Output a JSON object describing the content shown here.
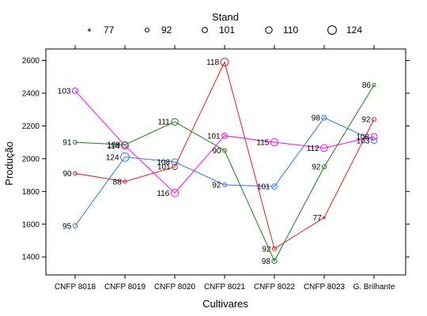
{
  "chart_data": {
    "type": "line",
    "title": "",
    "xlabel": "Cultivares",
    "ylabel": "Produção",
    "categories": [
      "CNFP 8018",
      "CNFP 8019",
      "CNFP 8020",
      "CNFP 8021",
      "CNFP 8022",
      "CNFP 8023",
      "G. Brilhante"
    ],
    "y_ticks": [
      1400,
      1600,
      1800,
      2000,
      2200,
      2400,
      2600
    ],
    "ylim": [
      1290,
      2670
    ],
    "legend": {
      "title": "Stand",
      "placement": "top",
      "entries": [
        {
          "label": "77",
          "size": 77
        },
        {
          "label": "92",
          "size": 92
        },
        {
          "label": "101",
          "size": 101
        },
        {
          "label": "110",
          "size": 110
        },
        {
          "label": "124",
          "size": 124
        }
      ]
    },
    "series": [
      {
        "color": "#e41a1c",
        "values": [
          1910,
          1860,
          1950,
          2590,
          1450,
          1640,
          2240
        ],
        "stands": [
          "90",
          "88",
          "101",
          "118",
          "92",
          "77",
          "92"
        ]
      },
      {
        "color": "#2c7bd6",
        "values": [
          1590,
          2010,
          1980,
          1840,
          1830,
          2250,
          2110
        ],
        "stands": [
          "95",
          "124",
          "108",
          "92",
          "101",
          "98",
          "103"
        ]
      },
      {
        "color": "#ff00ff",
        "values": [
          2415,
          2080,
          1790,
          2140,
          2100,
          2065,
          2135
        ],
        "stands": [
          "103",
          "114",
          "116",
          "101",
          "115",
          "112",
          "108"
        ]
      },
      {
        "color": "#1b7a1b",
        "values": [
          2100,
          2085,
          2225,
          2050,
          1375,
          1950,
          2450
        ],
        "stands": [
          "91",
          "108",
          "111",
          "90",
          "98",
          "92",
          "86"
        ]
      }
    ]
  }
}
